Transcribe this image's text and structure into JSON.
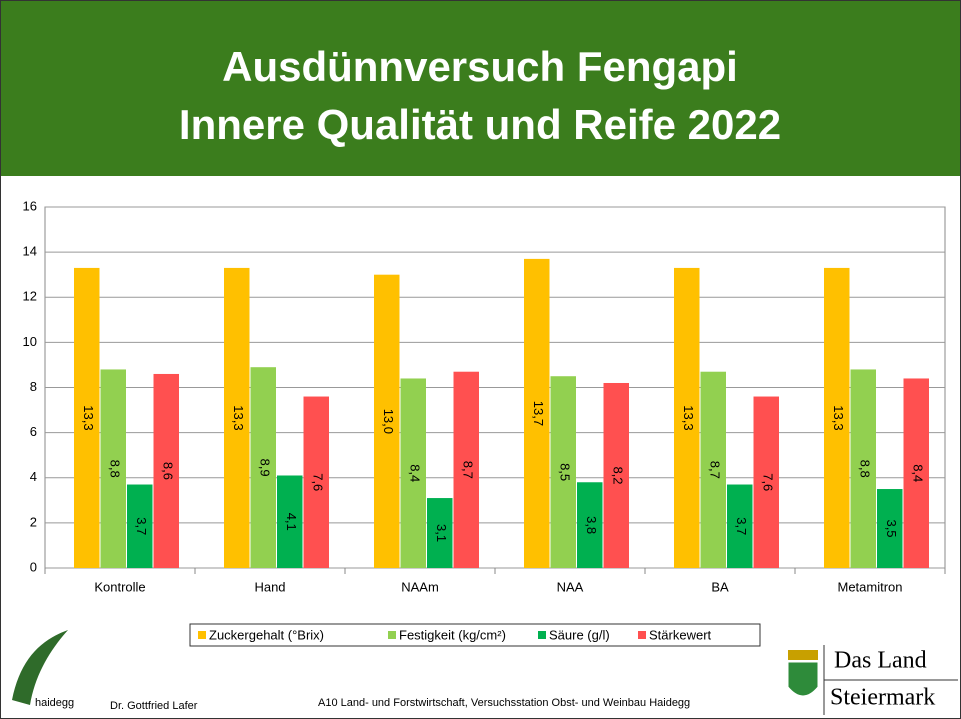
{
  "chart_data": {
    "type": "bar",
    "title": "Ausdünnversuch Fengapi",
    "subtitle": "Innere Qualität und Reife 2022",
    "categories": [
      "Kontrolle",
      "Hand",
      "NAAm",
      "NAA",
      "BA",
      "Metamitron"
    ],
    "series": [
      {
        "name": "Zuckergehalt (°Brix)",
        "color": "#ffc000",
        "values": [
          13.3,
          13.3,
          13.0,
          13.7,
          13.3,
          13.3
        ],
        "value_labels": [
          "13,3",
          "13,3",
          "13,0",
          "13,7",
          "13,3",
          "13,3"
        ]
      },
      {
        "name": "Festigkeit (kg/cm²)",
        "color": "#92d050",
        "values": [
          8.8,
          8.9,
          8.4,
          8.5,
          8.7,
          8.8
        ],
        "value_labels": [
          "8,8",
          "8,9",
          "8,4",
          "8,5",
          "8,7",
          "8,8"
        ]
      },
      {
        "name": "Säure (g/l)",
        "color": "#00b050",
        "values": [
          3.7,
          4.1,
          3.1,
          3.8,
          3.7,
          3.5
        ],
        "value_labels": [
          "3,7",
          "4,1",
          "3,1",
          "3,8",
          "3,7",
          "3,5"
        ]
      },
      {
        "name": "Stärkewert",
        "color": "#ff5050",
        "values": [
          8.6,
          7.6,
          8.7,
          8.2,
          7.6,
          8.4
        ],
        "value_labels": [
          "8,6",
          "7,6",
          "8,7",
          "8,2",
          "7,6",
          "8,4"
        ]
      }
    ],
    "ylim": [
      0,
      16
    ],
    "yticks": [
      0,
      2,
      4,
      6,
      8,
      10,
      12,
      14,
      16
    ],
    "grid": true,
    "legend": "bottom"
  },
  "footer": {
    "logo": "haidegg",
    "author": "Dr. Gottfried Lafer",
    "institution": "A10 Land- und Forstwirtschaft, Versuchsstation Obst- und Weinbau Haidegg",
    "brand_line1": "Das Land",
    "brand_line2": "Steiermark"
  }
}
